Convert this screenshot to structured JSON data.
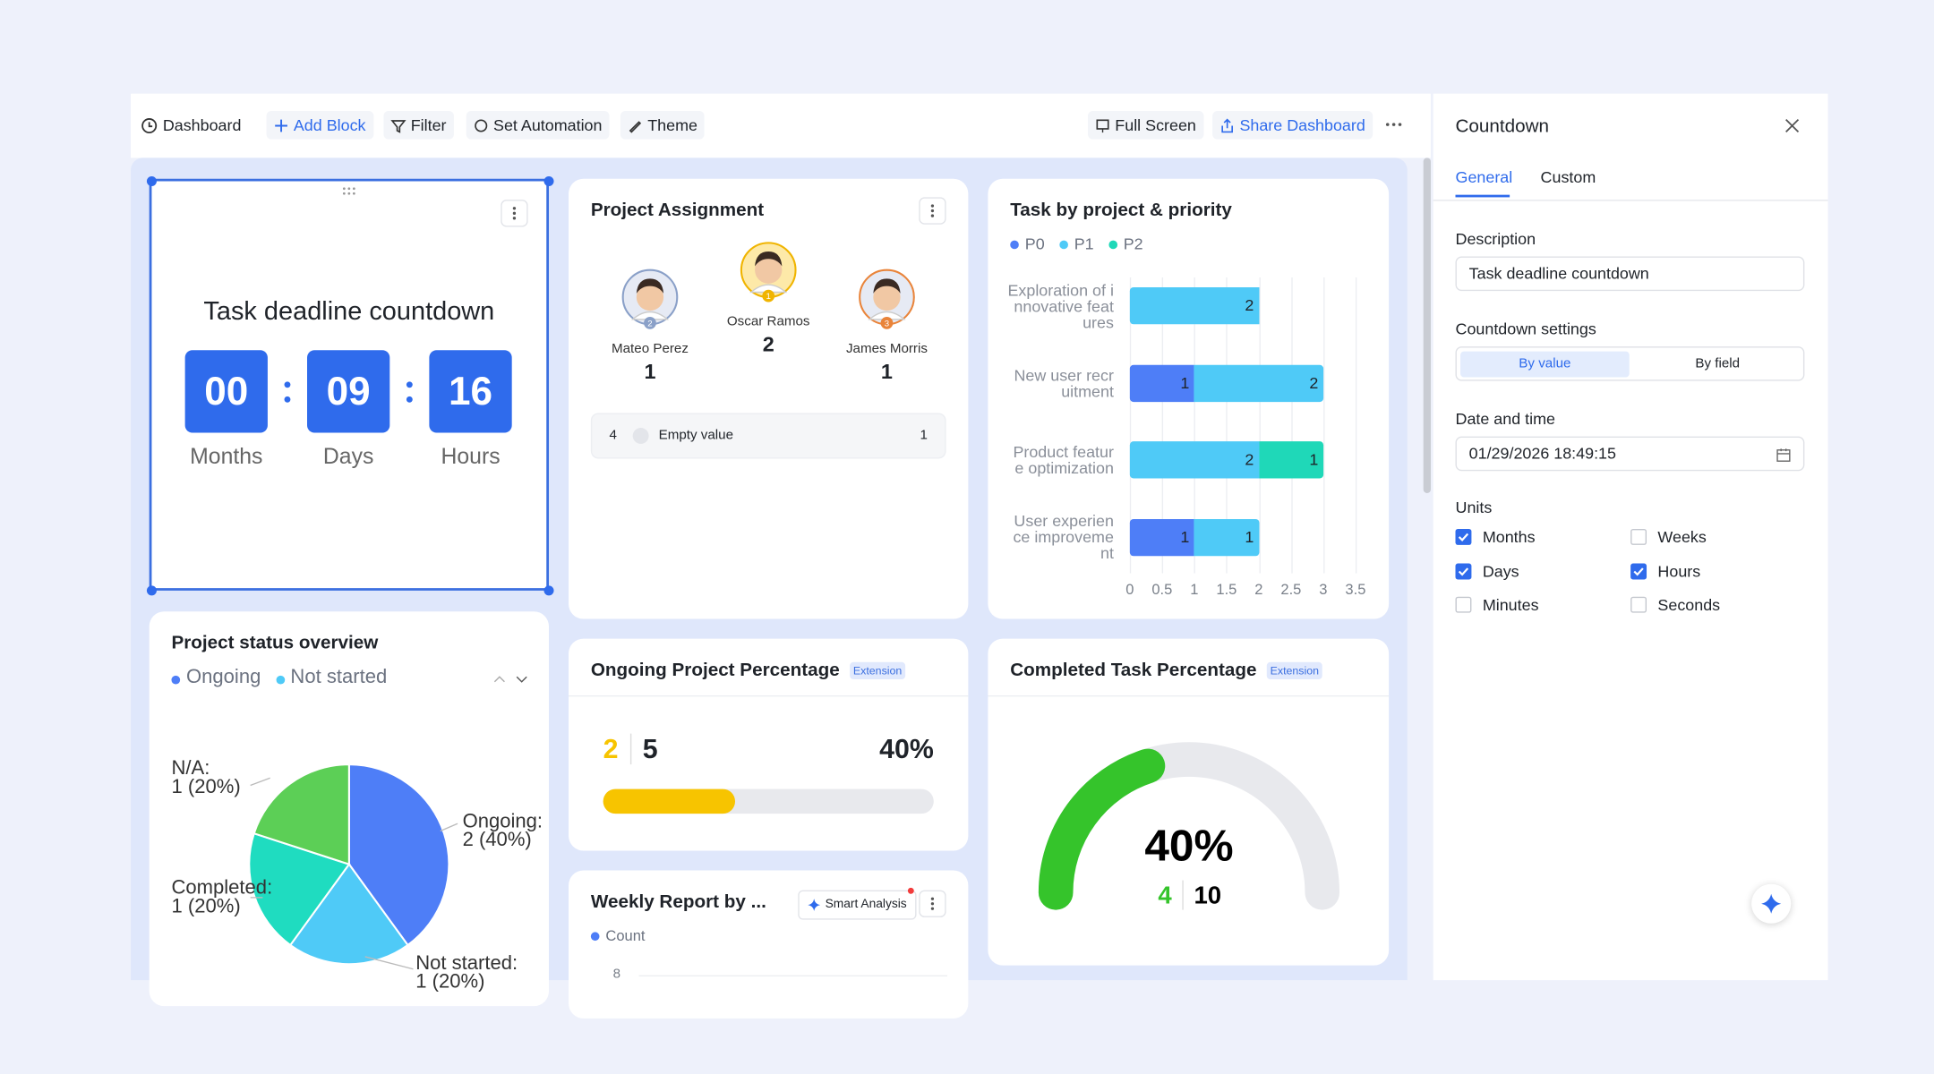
{
  "toolbar": {
    "left": [
      "Dashboard",
      "Add Block",
      "Filter",
      "Set Automation",
      "Theme"
    ],
    "right": [
      "Full Screen",
      "Share Dashboard"
    ]
  },
  "countdown": {
    "title": "Task deadline countdown",
    "units": [
      {
        "value": "00",
        "label": "Months"
      },
      {
        "value": "09",
        "label": "Days"
      },
      {
        "value": "16",
        "label": "Hours"
      }
    ]
  },
  "project_assignment": {
    "title": "Project Assignment",
    "people": [
      {
        "rank": 2,
        "name": "Mateo Perez",
        "count": 1
      },
      {
        "rank": 1,
        "name": "Oscar Ramos",
        "count": 2
      },
      {
        "rank": 3,
        "name": "James Morris",
        "count": 1
      }
    ],
    "other": {
      "rank": 4,
      "label": "Empty value",
      "count": 1
    }
  },
  "chart_data": [
    {
      "type": "bar",
      "orientation": "horizontal",
      "stacked": true,
      "title": "Task by project & priority",
      "categories": [
        "Exploration of innovative features",
        "New user recruitment",
        "Product feature optimization",
        "User experience improvement"
      ],
      "series": [
        {
          "name": "P0",
          "color": "#4e7ef7",
          "values": [
            null,
            1,
            null,
            1
          ]
        },
        {
          "name": "P1",
          "color": "#4fcaf7",
          "values": [
            2,
            2,
            2,
            1
          ]
        },
        {
          "name": "P2",
          "color": "#1fd8b8",
          "values": [
            null,
            null,
            1,
            null
          ]
        }
      ],
      "xlim": [
        0,
        3.5
      ],
      "xticks": [
        0,
        0.5,
        1,
        1.5,
        2,
        2.5,
        3,
        3.5
      ],
      "grid": true
    },
    {
      "type": "pie",
      "title": "Project status overview",
      "categories": [
        "Ongoing",
        "Not started",
        "Completed",
        "N/A"
      ],
      "slice_labels": [
        "Ongoing:",
        "Not started:",
        "Completed:",
        "N/A:"
      ],
      "values": [
        2,
        1,
        1,
        1
      ],
      "value_labels": [
        "2 (40%)",
        "1 (20%)",
        "1 (20%)",
        "1 (20%)"
      ],
      "colors": [
        "#4e7ef7",
        "#4fcaf7",
        "#1fdcc0",
        "#5ccf56"
      ]
    },
    {
      "type": "progress",
      "title": "Ongoing Project Percentage",
      "tag": "Extension",
      "value": 2,
      "total": 5,
      "percent": 40,
      "percent_label": "40%",
      "color": "#f7c400"
    },
    {
      "type": "gauge",
      "title": "Completed Task Percentage",
      "tag": "Extension",
      "value": 4,
      "total": 10,
      "percent": 40,
      "percent_label": "40%",
      "color": "#35c42b"
    },
    {
      "type": "line",
      "title": "Weekly Report by ...",
      "button": "Smart Analysis",
      "series": [
        {
          "name": "Count",
          "color": "#4e7ef7"
        }
      ],
      "yticks": [
        8
      ]
    }
  ],
  "side_panel": {
    "title": "Countdown",
    "tabs": [
      "General",
      "Custom"
    ],
    "description_label": "Description",
    "description": "Task deadline countdown",
    "settings_label": "Countdown settings",
    "settings_options": [
      "By value",
      "By field"
    ],
    "date_label": "Date and time",
    "date": "01/29/2026 18:49:15",
    "units_label": "Units",
    "units": [
      {
        "label": "Months",
        "checked": true
      },
      {
        "label": "Weeks",
        "checked": false
      },
      {
        "label": "Days",
        "checked": true
      },
      {
        "label": "Hours",
        "checked": true
      },
      {
        "label": "Minutes",
        "checked": false
      },
      {
        "label": "Seconds",
        "checked": false
      }
    ]
  }
}
